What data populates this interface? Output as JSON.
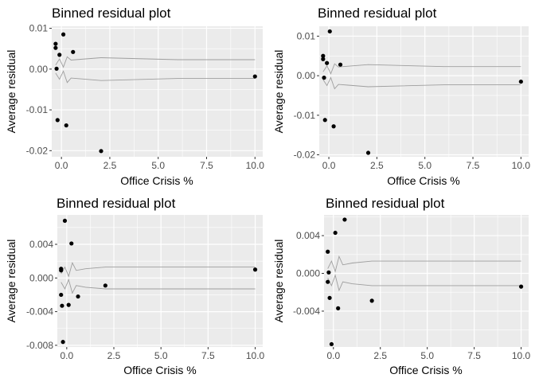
{
  "chart_data": [
    {
      "type": "scatter",
      "title": "Binned residual plot",
      "xlabel": "Office Crisis %",
      "ylabel": "Average residual",
      "xlim": [
        -0.5,
        10.4
      ],
      "ylim": [
        -0.0215,
        0.0105
      ],
      "xticks": [
        0,
        2.5,
        5,
        7.5,
        10
      ],
      "xtick_labels": [
        "0.0",
        "2.5",
        "5.0",
        "7.5",
        "10.0"
      ],
      "yticks": [
        -0.02,
        -0.01,
        0,
        0.01
      ],
      "ytick_labels": [
        "-0.02",
        "-0.01",
        "0.00",
        "0.01"
      ],
      "grid": true,
      "points": {
        "x": [
          -0.3,
          -0.3,
          -0.25,
          -0.2,
          -0.1,
          0.1,
          0.25,
          0.6,
          2.05,
          10.0
        ],
        "y": [
          0.0062,
          0.0052,
          0.0001,
          -0.0125,
          0.0035,
          0.0085,
          -0.0138,
          0.0042,
          -0.0201,
          -0.0018
        ]
      },
      "bands": {
        "x": [
          -0.3,
          -0.1,
          0.1,
          0.3,
          0.5,
          1.0,
          2.05,
          6.0,
          10.0
        ],
        "upper": [
          0.001,
          0.0025,
          0.0005,
          0.003,
          0.0022,
          0.0024,
          0.0028,
          0.0023,
          0.0023
        ],
        "lower": [
          -0.001,
          -0.0025,
          -0.0005,
          -0.0033,
          -0.0022,
          -0.0024,
          -0.0028,
          -0.0023,
          -0.0023
        ]
      }
    },
    {
      "type": "scatter",
      "title": "Binned residual plot",
      "xlabel": "Office Crisis %",
      "ylabel": "Average residual",
      "xlim": [
        -0.5,
        10.4
      ],
      "ylim": [
        -0.0205,
        0.0125
      ],
      "xticks": [
        0,
        2.5,
        5,
        7.5,
        10
      ],
      "xtick_labels": [
        "0.0",
        "2.5",
        "5.0",
        "7.5",
        "10.0"
      ],
      "yticks": [
        -0.02,
        -0.01,
        0,
        0.01
      ],
      "ytick_labels": [
        "-0.02",
        "-0.01",
        "0.00",
        "0.01"
      ],
      "grid": true,
      "points": {
        "x": [
          -0.3,
          -0.3,
          -0.25,
          -0.1,
          0.05,
          0.25,
          0.6,
          2.05,
          10.0,
          -0.2
        ],
        "y": [
          0.005,
          0.0042,
          -0.0005,
          0.0032,
          0.0112,
          -0.0128,
          0.0028,
          -0.0195,
          -0.0015,
          -0.0112
        ]
      },
      "bands": {
        "x": [
          -0.3,
          -0.1,
          0.1,
          0.3,
          0.5,
          1.0,
          2.05,
          6.0,
          10.0
        ],
        "upper": [
          0.001,
          0.0025,
          0.0005,
          0.003,
          0.0022,
          0.0024,
          0.0028,
          0.0023,
          0.0023
        ],
        "lower": [
          -0.001,
          -0.0025,
          -0.0005,
          -0.0033,
          -0.0022,
          -0.0024,
          -0.0028,
          -0.0023,
          -0.0023
        ]
      }
    },
    {
      "type": "scatter",
      "title": "Binned residual plot",
      "xlabel": "Office Crisis %",
      "ylabel": "Average residual",
      "xlim": [
        -0.5,
        10.4
      ],
      "ylim": [
        -0.0082,
        0.0075
      ],
      "xticks": [
        0,
        2.5,
        5,
        7.5,
        10
      ],
      "xtick_labels": [
        "0.0",
        "2.5",
        "5.0",
        "7.5",
        "10.0"
      ],
      "yticks": [
        -0.008,
        -0.004,
        0,
        0.004
      ],
      "ytick_labels": [
        "-0.008",
        "-0.004",
        "0.000",
        "0.004"
      ],
      "grid": true,
      "points": {
        "x": [
          -0.3,
          -0.3,
          -0.3,
          -0.25,
          -0.2,
          -0.1,
          0.1,
          0.25,
          0.6,
          2.05,
          10.0
        ],
        "y": [
          0.0011,
          0.0009,
          -0.002,
          -0.0033,
          -0.0076,
          0.0068,
          -0.0032,
          0.0041,
          -0.0022,
          -0.0009,
          0.001
        ]
      },
      "bands": {
        "x": [
          -0.3,
          -0.1,
          0.1,
          0.3,
          0.5,
          1.0,
          2.05,
          6.0,
          10.0
        ],
        "upper": [
          0.0005,
          0.0013,
          0.0002,
          0.0018,
          0.0009,
          0.0011,
          0.0013,
          0.0013,
          0.0013
        ],
        "lower": [
          -0.0005,
          -0.0013,
          -0.0002,
          -0.0018,
          -0.0009,
          -0.0011,
          -0.0013,
          -0.0013,
          -0.0013
        ]
      }
    },
    {
      "type": "scatter",
      "title": "Binned residual plot",
      "xlabel": "Office Crisis %",
      "ylabel": "Average residual",
      "xlim": [
        -0.5,
        10.4
      ],
      "ylim": [
        -0.0078,
        0.0062
      ],
      "xticks": [
        0,
        2.5,
        5,
        7.5,
        10
      ],
      "xtick_labels": [
        "0.0",
        "2.5",
        "5.0",
        "7.5",
        "10.0"
      ],
      "yticks": [
        -0.004,
        0,
        0.004
      ],
      "ytick_labels": [
        "-0.004",
        "0.000",
        "0.004"
      ],
      "grid": true,
      "points": {
        "x": [
          -0.3,
          -0.3,
          -0.25,
          -0.2,
          -0.1,
          0.1,
          0.25,
          0.6,
          2.05,
          10.0
        ],
        "y": [
          0.0023,
          -0.0009,
          0.0001,
          -0.0026,
          -0.0075,
          0.0043,
          -0.0037,
          0.0057,
          -0.0029,
          -0.0014
        ]
      },
      "bands": {
        "x": [
          -0.3,
          -0.1,
          0.1,
          0.3,
          0.5,
          1.0,
          2.05,
          6.0,
          10.0
        ],
        "upper": [
          0.0005,
          0.0013,
          0.0002,
          0.0018,
          0.0009,
          0.0011,
          0.0013,
          0.0013,
          0.0013
        ],
        "lower": [
          -0.0005,
          -0.0013,
          -0.0002,
          -0.0018,
          -0.0009,
          -0.0011,
          -0.0013,
          -0.0013,
          -0.0013
        ]
      }
    }
  ]
}
